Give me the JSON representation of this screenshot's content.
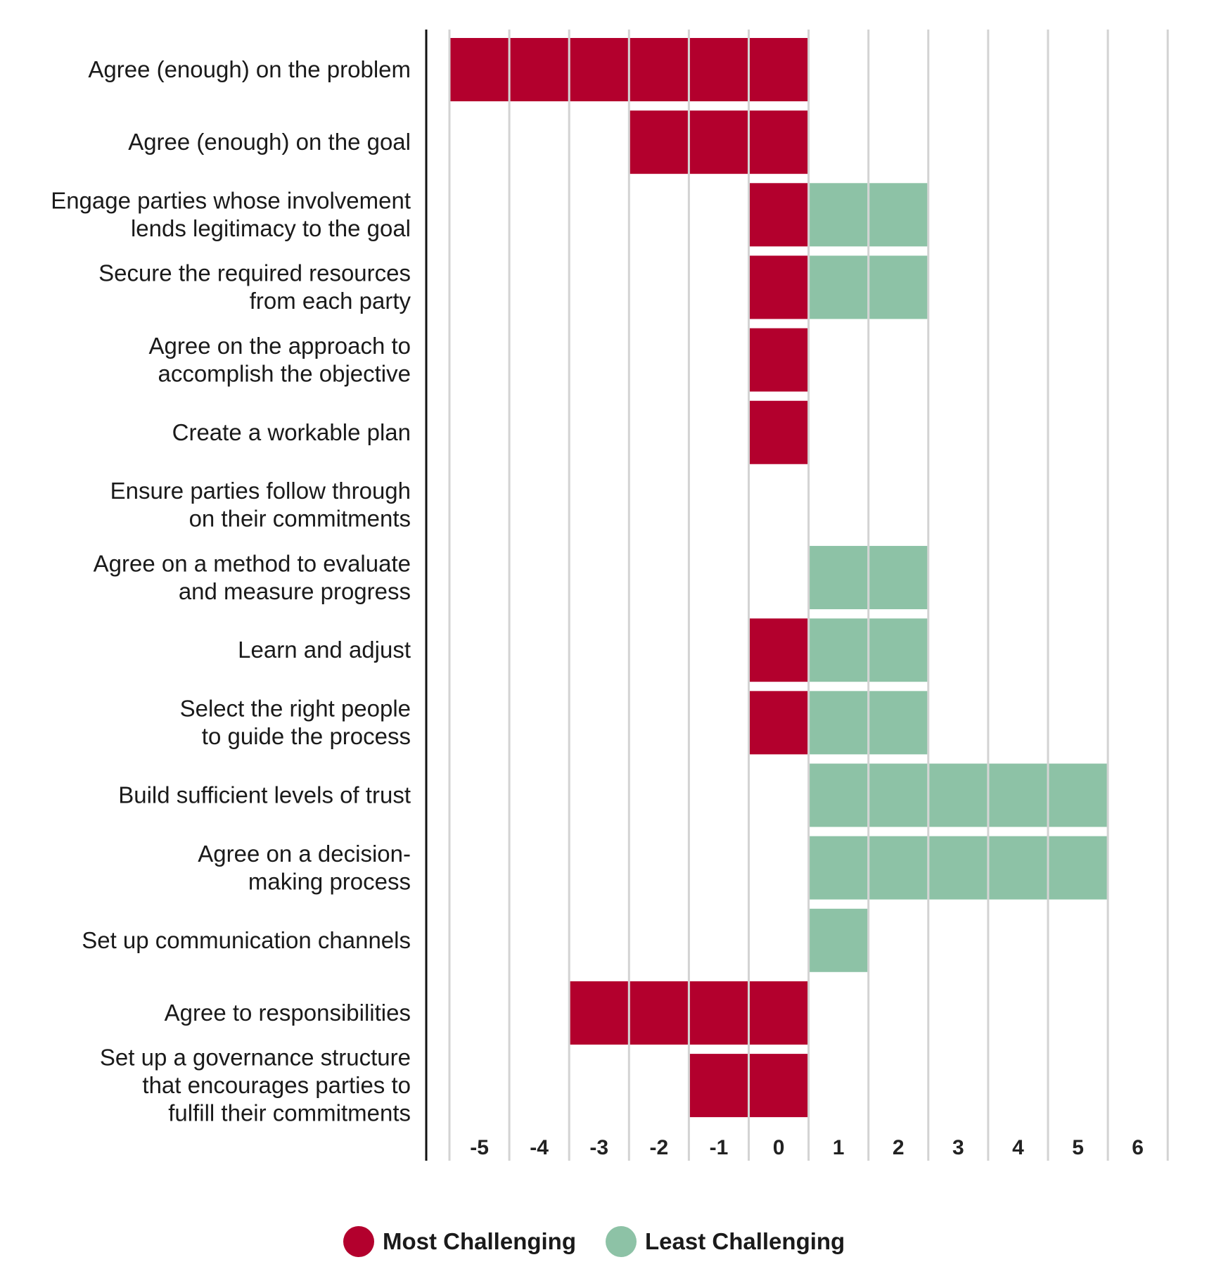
{
  "chart_data": {
    "type": "bar",
    "orientation": "horizontal",
    "stacked_diverging": true,
    "title": "",
    "xlabel": "",
    "ylabel": "",
    "xlim": [
      -5,
      6
    ],
    "x_ticks": [
      "-5",
      "-4",
      "-3",
      "-2",
      "-1",
      "0",
      "1",
      "2",
      "3",
      "4",
      "5",
      "6"
    ],
    "grid": true,
    "legend_position": "bottom-center",
    "categories": [
      [
        "Agree (enough) on the problem"
      ],
      [
        "Agree (enough) on the goal"
      ],
      [
        "Engage parties whose involvement",
        "lends legitimacy to the goal"
      ],
      [
        "Secure the required resources",
        "from each party"
      ],
      [
        "Agree on the approach to",
        "accomplish the objective"
      ],
      [
        "Create a workable plan"
      ],
      [
        "Ensure parties follow through",
        "on their commitments"
      ],
      [
        "Agree on a method to evaluate",
        "and measure progress"
      ],
      [
        "Learn and adjust"
      ],
      [
        "Select the right people",
        "to guide the process"
      ],
      [
        "Build sufficient levels of trust"
      ],
      [
        "Agree on a decision-",
        "making process"
      ],
      [
        "Set up communication channels"
      ],
      [
        "Agree to responsibilities"
      ],
      [
        "Set up a governance structure",
        "that encourages parties to",
        "fulfill their commitments"
      ]
    ],
    "series": [
      {
        "name": "Most Challenging",
        "color": "#B3002D",
        "description": "red cells spanning from the listed value up to column 0 (null = none)",
        "values": [
          -5,
          -2,
          0,
          0,
          0,
          0,
          null,
          null,
          0,
          0,
          null,
          null,
          null,
          -3,
          -1
        ]
      },
      {
        "name": "Least Challenging",
        "color": "#8DC2A6",
        "description": "green cells spanning from column 1 up to the listed value (null = none)",
        "values": [
          null,
          null,
          2,
          2,
          null,
          null,
          null,
          2,
          2,
          2,
          5,
          5,
          1,
          null,
          null
        ]
      }
    ]
  },
  "legend": {
    "items": [
      {
        "label": "Most Challenging",
        "color": "#B3002D"
      },
      {
        "label": "Least Challenging",
        "color": "#8DC2A6"
      }
    ]
  },
  "colors": {
    "grid": "#D3D3D3",
    "axis": "#111111",
    "text": "#1a1a1a"
  }
}
